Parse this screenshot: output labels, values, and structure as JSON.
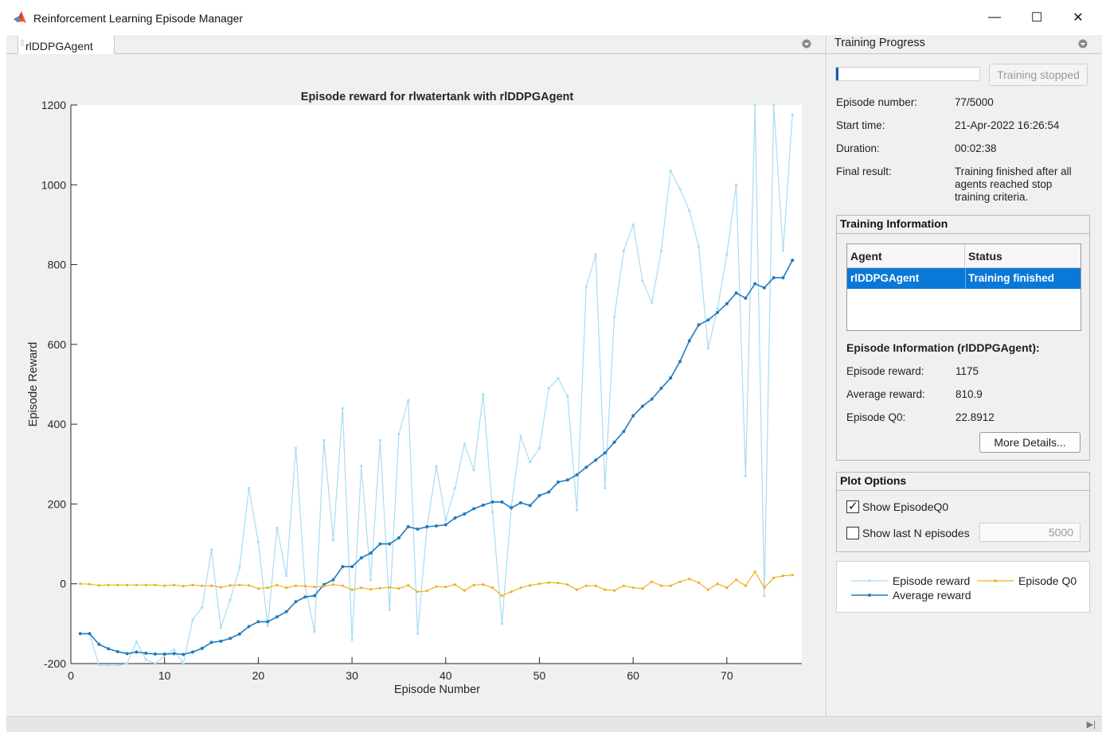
{
  "window": {
    "title": "Reinforcement Learning Episode Manager",
    "minimize_glyph": "—",
    "maximize_glyph": "☐",
    "close_glyph": "✕"
  },
  "left_panel": {
    "tab_label": "rlDDPGAgent"
  },
  "right_panel": {
    "header": "Training Progress",
    "progress_fraction": 0.0154,
    "stop_button": "Training stopped",
    "episode_number_label": "Episode number:",
    "episode_number_value": "77/5000",
    "start_time_label": "Start time:",
    "start_time_value": "21-Apr-2022 16:26:54",
    "duration_label": "Duration:",
    "duration_value": "00:02:38",
    "final_result_label": "Final result:",
    "final_result_value": "Training finished after all agents reached stop training criteria.",
    "training_info": {
      "title": "Training Information",
      "columns": [
        "Agent",
        "Status"
      ],
      "rows": [
        {
          "agent": "rlDDPGAgent",
          "status": "Training finished"
        }
      ],
      "episode_info_title": "Episode Information (rlDDPGAgent):",
      "episode_reward_label": "Episode reward:",
      "episode_reward_value": "1175",
      "average_reward_label": "Average reward:",
      "average_reward_value": "810.9",
      "episode_q0_label": "Episode Q0:",
      "episode_q0_value": "22.8912",
      "more_details_button": "More Details..."
    },
    "plot_options": {
      "title": "Plot Options",
      "show_q0_label": "Show EpisodeQ0",
      "show_q0_checked": true,
      "show_last_n_label": "Show last N episodes",
      "show_last_n_checked": false,
      "last_n_value": "5000"
    }
  },
  "colors": {
    "episode_reward": "#a8dcf5",
    "average_reward": "#1f7bc0",
    "episode_q0": "#edb120",
    "selection": "#0a78d7"
  },
  "chart_data": {
    "type": "line",
    "title": "Episode reward for rlwatertank with rlDDPGAgent",
    "xlabel": "Episode Number",
    "ylabel": "Episode Reward",
    "xlim": [
      0,
      78
    ],
    "ylim": [
      -200,
      1200
    ],
    "xticks": [
      0,
      10,
      20,
      30,
      40,
      50,
      60,
      70
    ],
    "yticks": [
      -200,
      0,
      200,
      400,
      600,
      800,
      1000,
      1200
    ],
    "x": [
      1,
      2,
      3,
      4,
      5,
      6,
      7,
      8,
      9,
      10,
      11,
      12,
      13,
      14,
      15,
      16,
      17,
      18,
      19,
      20,
      21,
      22,
      23,
      24,
      25,
      26,
      27,
      28,
      29,
      30,
      31,
      32,
      33,
      34,
      35,
      36,
      37,
      38,
      39,
      40,
      41,
      42,
      43,
      44,
      45,
      46,
      47,
      48,
      49,
      50,
      51,
      52,
      53,
      54,
      55,
      56,
      57,
      58,
      59,
      60,
      61,
      62,
      63,
      64,
      65,
      66,
      67,
      68,
      69,
      70,
      71,
      72,
      73,
      74,
      75,
      76,
      77
    ],
    "series": [
      {
        "name": "Episode reward",
        "values": [
          -125,
          -125,
          -205,
          -205,
          -205,
          -200,
          -145,
          -190,
          -200,
          -180,
          -165,
          -200,
          -90,
          -60,
          85,
          -110,
          -40,
          40,
          240,
          105,
          -105,
          140,
          20,
          340,
          -5,
          -120,
          360,
          110,
          440,
          -140,
          295,
          10,
          360,
          -65,
          375,
          460,
          -125,
          140,
          295,
          160,
          240,
          350,
          285,
          475,
          180,
          -100,
          195,
          370,
          305,
          340,
          490,
          515,
          470,
          185,
          745,
          825,
          240,
          670,
          835,
          900,
          760,
          705,
          835,
          1035,
          990,
          935,
          845,
          590,
          690,
          825,
          1000,
          270,
          1200,
          -30,
          1200,
          835,
          1175
        ]
      },
      {
        "name": "Average reward",
        "values": [
          -125,
          -125,
          -152,
          -163,
          -170,
          -175,
          -171,
          -174,
          -176,
          -176,
          -175,
          -177,
          -171,
          -162,
          -147,
          -144,
          -137,
          -126,
          -107,
          -95,
          -95,
          -83,
          -70,
          -45,
          -33,
          -30,
          -2,
          10,
          43,
          43,
          65,
          77,
          100,
          100,
          115,
          143,
          137,
          143,
          145,
          148,
          165,
          175,
          188,
          197,
          205,
          205,
          190,
          203,
          196,
          221,
          230,
          255,
          260,
          273,
          292,
          310,
          328,
          355,
          382,
          421,
          445,
          463,
          490,
          516,
          557,
          609,
          649,
          661,
          680,
          702,
          729,
          716,
          752,
          742,
          767,
          767,
          811
        ]
      },
      {
        "name": "Episode Q0",
        "values": [
          0,
          -1,
          -4,
          -3,
          -3,
          -3,
          -3,
          -3,
          -3,
          -5,
          -3,
          -6,
          -3,
          -5,
          -5,
          -9,
          -4,
          -3,
          -4,
          -12,
          -10,
          -3,
          -10,
          -5,
          -6,
          -8,
          -6,
          -2,
          -5,
          -15,
          -10,
          -14,
          -11,
          -9,
          -12,
          -4,
          -20,
          -18,
          -7,
          -8,
          -2,
          -17,
          -3,
          -2,
          -10,
          -30,
          -20,
          -10,
          -4,
          0,
          3,
          2,
          -2,
          -15,
          -5,
          -5,
          -15,
          -17,
          -5,
          -10,
          -12,
          5,
          -5,
          -5,
          5,
          12,
          3,
          -15,
          0,
          -10,
          10,
          -5,
          30,
          -10,
          15,
          20,
          22
        ]
      }
    ],
    "legend": "right-panel"
  }
}
